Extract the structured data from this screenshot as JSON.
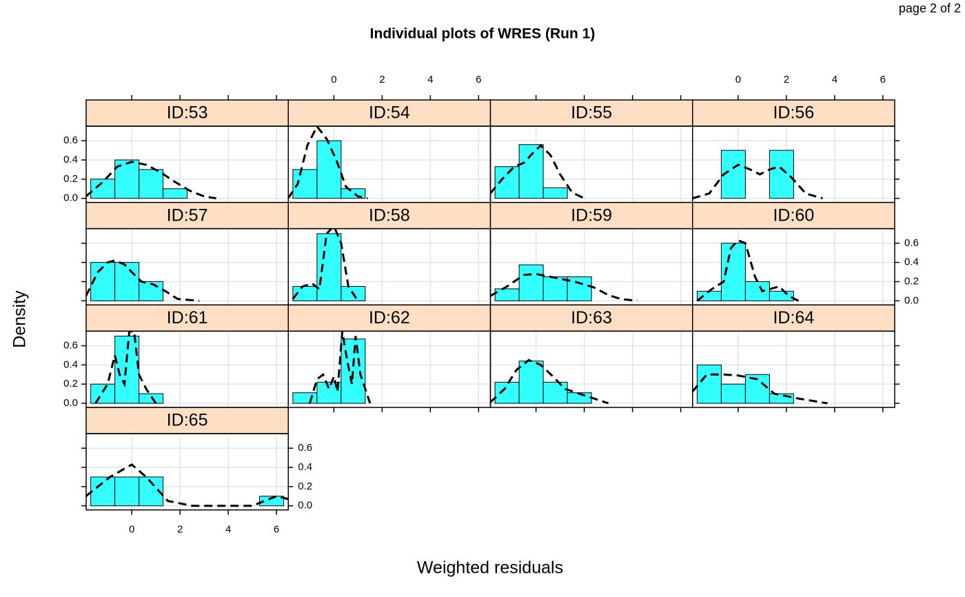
{
  "chart_data": {
    "type": "histogram",
    "page_label": "page 2 of 2",
    "title": "Individual plots of WRES (Run 1)",
    "x_label": "Weighted residuals",
    "y_label": "Density",
    "bins": [
      -1.7,
      -0.7,
      0.3,
      1.3,
      2.3,
      3.3,
      4.3,
      5.3,
      6.3
    ],
    "xlim": [
      -1.89,
      6.49
    ],
    "xticks": [
      0,
      2,
      4,
      6
    ],
    "ylim": [
      -0.043,
      0.752
    ],
    "yticks": [
      {
        "value": 0,
        "label": "0.0"
      },
      {
        "value": 0.2,
        "label": "0.2"
      },
      {
        "value": 0.4,
        "label": "0.4"
      },
      {
        "value": 0.6,
        "label": "0.6"
      }
    ],
    "grid": true,
    "bar_color": "#33ffff",
    "strip_color": "#ffdfc4",
    "panels": [
      {
        "strip": "ID:53",
        "values": [
          0.2,
          0.4,
          0.3,
          0.1,
          0,
          0,
          0,
          0
        ],
        "density": {
          "x": [
            -1.9,
            -1.2,
            -0.6,
            0,
            0.6,
            1.2,
            1.8,
            2.4,
            3,
            3.5
          ],
          "y": [
            0.02,
            0.17,
            0.33,
            0.38,
            0.35,
            0.27,
            0.17,
            0.08,
            0.02,
            0
          ]
        }
      },
      {
        "strip": "ID:54",
        "values": [
          0.3,
          0.6,
          0.1,
          0,
          0,
          0,
          0,
          0
        ],
        "density": {
          "x": [
            -1.9,
            -1.5,
            -1.1,
            -0.7,
            -0.3,
            0.1,
            0.5,
            1.0,
            1.4
          ],
          "y": [
            0,
            0.15,
            0.55,
            0.75,
            0.62,
            0.4,
            0.12,
            0.02,
            0
          ]
        }
      },
      {
        "strip": "ID:55",
        "values": [
          0.33,
          0.56,
          0.11,
          0,
          0,
          0,
          0,
          0
        ],
        "density": {
          "x": [
            -1.9,
            -1.4,
            -0.9,
            -0.5,
            -0.1,
            0.2,
            0.6,
            1.0,
            1.5,
            2.0
          ],
          "y": [
            0.05,
            0.2,
            0.33,
            0.37,
            0.48,
            0.55,
            0.45,
            0.25,
            0.06,
            0
          ]
        }
      },
      {
        "strip": "ID:56",
        "values": [
          0,
          0.5,
          0,
          0.5,
          0,
          0,
          0,
          0
        ],
        "density": {
          "x": [
            -1.9,
            -1.2,
            -0.6,
            0,
            0.5,
            0.9,
            1.3,
            1.7,
            2.2,
            2.8,
            3.5
          ],
          "y": [
            0,
            0.05,
            0.25,
            0.35,
            0.3,
            0.25,
            0.3,
            0.33,
            0.22,
            0.05,
            0
          ]
        }
      },
      {
        "strip": "ID:57",
        "values": [
          0.4,
          0.4,
          0.2,
          0,
          0,
          0,
          0,
          0
        ],
        "density": {
          "x": [
            -1.9,
            -1.4,
            -1.0,
            -0.7,
            -0.3,
            0,
            0.4,
            0.9,
            1.4,
            1.9,
            2.8
          ],
          "y": [
            0.05,
            0.3,
            0.4,
            0.42,
            0.38,
            0.3,
            0.2,
            0.17,
            0.1,
            0.02,
            0
          ]
        }
      },
      {
        "strip": "ID:58",
        "values": [
          0.15,
          0.7,
          0.15,
          0,
          0,
          0,
          0,
          0
        ],
        "density": {
          "x": [
            -1.7,
            -1.3,
            -0.9,
            -0.6,
            -0.3,
            0,
            0.3,
            0.6,
            1.0
          ],
          "y": [
            0.02,
            0.15,
            0.18,
            0.12,
            0.7,
            0.78,
            0.6,
            0.15,
            0
          ]
        }
      },
      {
        "strip": "ID:59",
        "values": [
          0.125,
          0.375,
          0.25,
          0.25,
          0,
          0,
          0,
          0
        ],
        "density": {
          "x": [
            -1.9,
            -1.2,
            -0.5,
            0,
            0.8,
            1.6,
            2.4,
            3.0,
            3.5,
            4.2
          ],
          "y": [
            0.05,
            0.15,
            0.27,
            0.28,
            0.24,
            0.2,
            0.14,
            0.06,
            0.02,
            0
          ]
        }
      },
      {
        "strip": "ID:60",
        "values": [
          0.1,
          0.6,
          0.2,
          0.1,
          0,
          0,
          0,
          0
        ],
        "density": {
          "x": [
            -1.7,
            -1.1,
            -0.6,
            -0.3,
            0,
            0.3,
            0.7,
            1.0,
            1.3,
            1.7,
            2.1,
            2.5
          ],
          "y": [
            0,
            0.12,
            0.2,
            0.55,
            0.63,
            0.6,
            0.25,
            0.1,
            0.12,
            0.15,
            0.05,
            0
          ]
        }
      },
      {
        "strip": "ID:61",
        "values": [
          0.2,
          0.7,
          0.1,
          0,
          0,
          0,
          0,
          0
        ],
        "density": {
          "x": [
            -1.5,
            -1.0,
            -0.7,
            -0.5,
            -0.3,
            -0.1,
            0.1,
            0.3,
            0.6,
            1.0
          ],
          "y": [
            0,
            0.2,
            0.5,
            0.3,
            0.2,
            0.75,
            0.75,
            0.3,
            0.15,
            0
          ]
        }
      },
      {
        "strip": "ID:62",
        "values": [
          0.11,
          0.22,
          0.67,
          0,
          0,
          0,
          0,
          0
        ],
        "density": {
          "x": [
            -1.0,
            -0.7,
            -0.45,
            -0.2,
            0,
            0.15,
            0.35,
            0.55,
            0.75,
            0.9,
            1.1,
            1.5
          ],
          "y": [
            0,
            0.25,
            0.3,
            0.15,
            0.28,
            0.12,
            0.75,
            0.45,
            0.2,
            0.7,
            0.3,
            0
          ]
        }
      },
      {
        "strip": "ID:63",
        "values": [
          0.22,
          0.44,
          0.22,
          0.11,
          0,
          0,
          0,
          0
        ],
        "density": {
          "x": [
            -1.9,
            -1.3,
            -0.8,
            -0.3,
            0.2,
            0.7,
            1.2,
            1.8,
            2.4,
            3.0
          ],
          "y": [
            0.01,
            0.15,
            0.35,
            0.45,
            0.4,
            0.28,
            0.15,
            0.1,
            0.05,
            0
          ]
        }
      },
      {
        "strip": "ID:64",
        "values": [
          0.4,
          0.2,
          0.3,
          0.1,
          0,
          0,
          0,
          0
        ],
        "density": {
          "x": [
            -1.9,
            -1.3,
            -0.6,
            0,
            0.8,
            1.5,
            2.5,
            3.7
          ],
          "y": [
            0.12,
            0.3,
            0.3,
            0.29,
            0.25,
            0.1,
            0.05,
            0
          ]
        }
      },
      {
        "strip": "ID:65",
        "values": [
          0.3,
          0.3,
          0.3,
          0,
          0,
          0,
          0,
          0.1
        ],
        "density": {
          "x": [
            -1.9,
            -0.9,
            0,
            0.6,
            1.5,
            2.5,
            5.0,
            6.0,
            6.49
          ],
          "y": [
            0.1,
            0.3,
            0.43,
            0.3,
            0.05,
            0,
            0,
            0.1,
            0.07
          ]
        }
      }
    ]
  }
}
